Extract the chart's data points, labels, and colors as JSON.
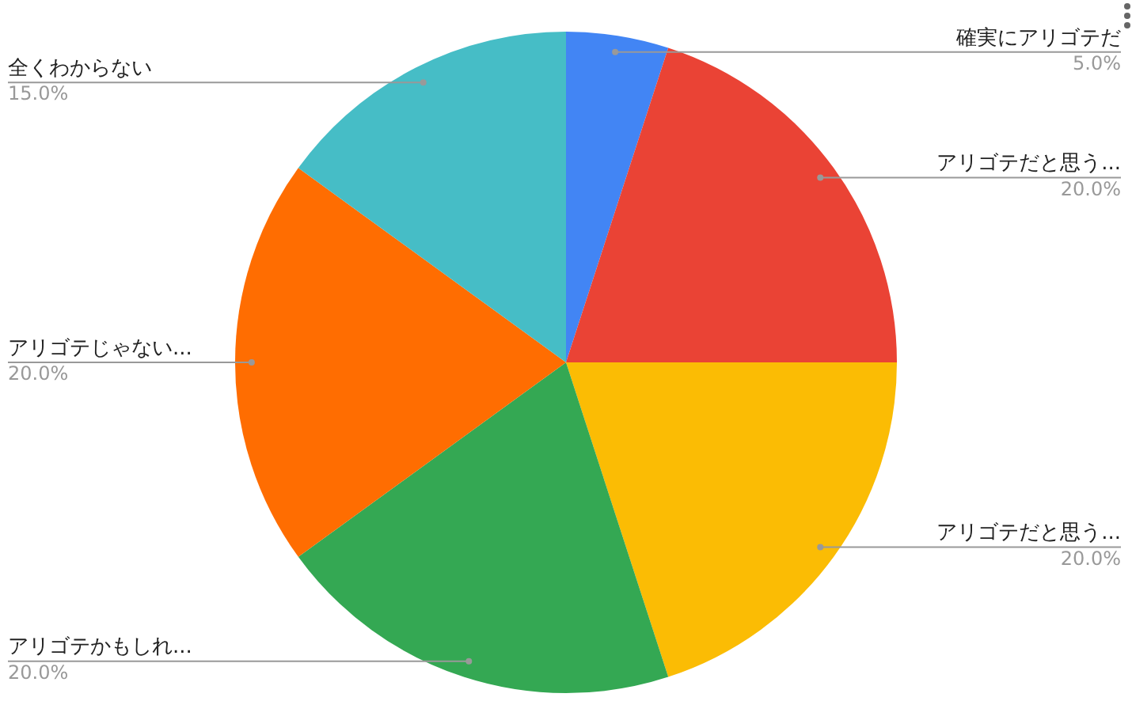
{
  "chart_data": {
    "type": "pie",
    "categories": [
      "確実にアリゴテだ",
      "アリゴテだと思う...",
      "アリゴテだと思う...",
      "アリゴテかもしれ...",
      "アリゴテじゃない...",
      "全くわからない"
    ],
    "values": [
      5,
      20,
      20,
      20,
      20,
      15
    ],
    "value_labels": [
      "5.0%",
      "20.0%",
      "20.0%",
      "20.0%",
      "20.0%",
      "15.0%"
    ],
    "colors": [
      "#4285f4",
      "#ea4335",
      "#fbbc04",
      "#34a853",
      "#ff6d01",
      "#46bdc6"
    ],
    "legend": false
  }
}
